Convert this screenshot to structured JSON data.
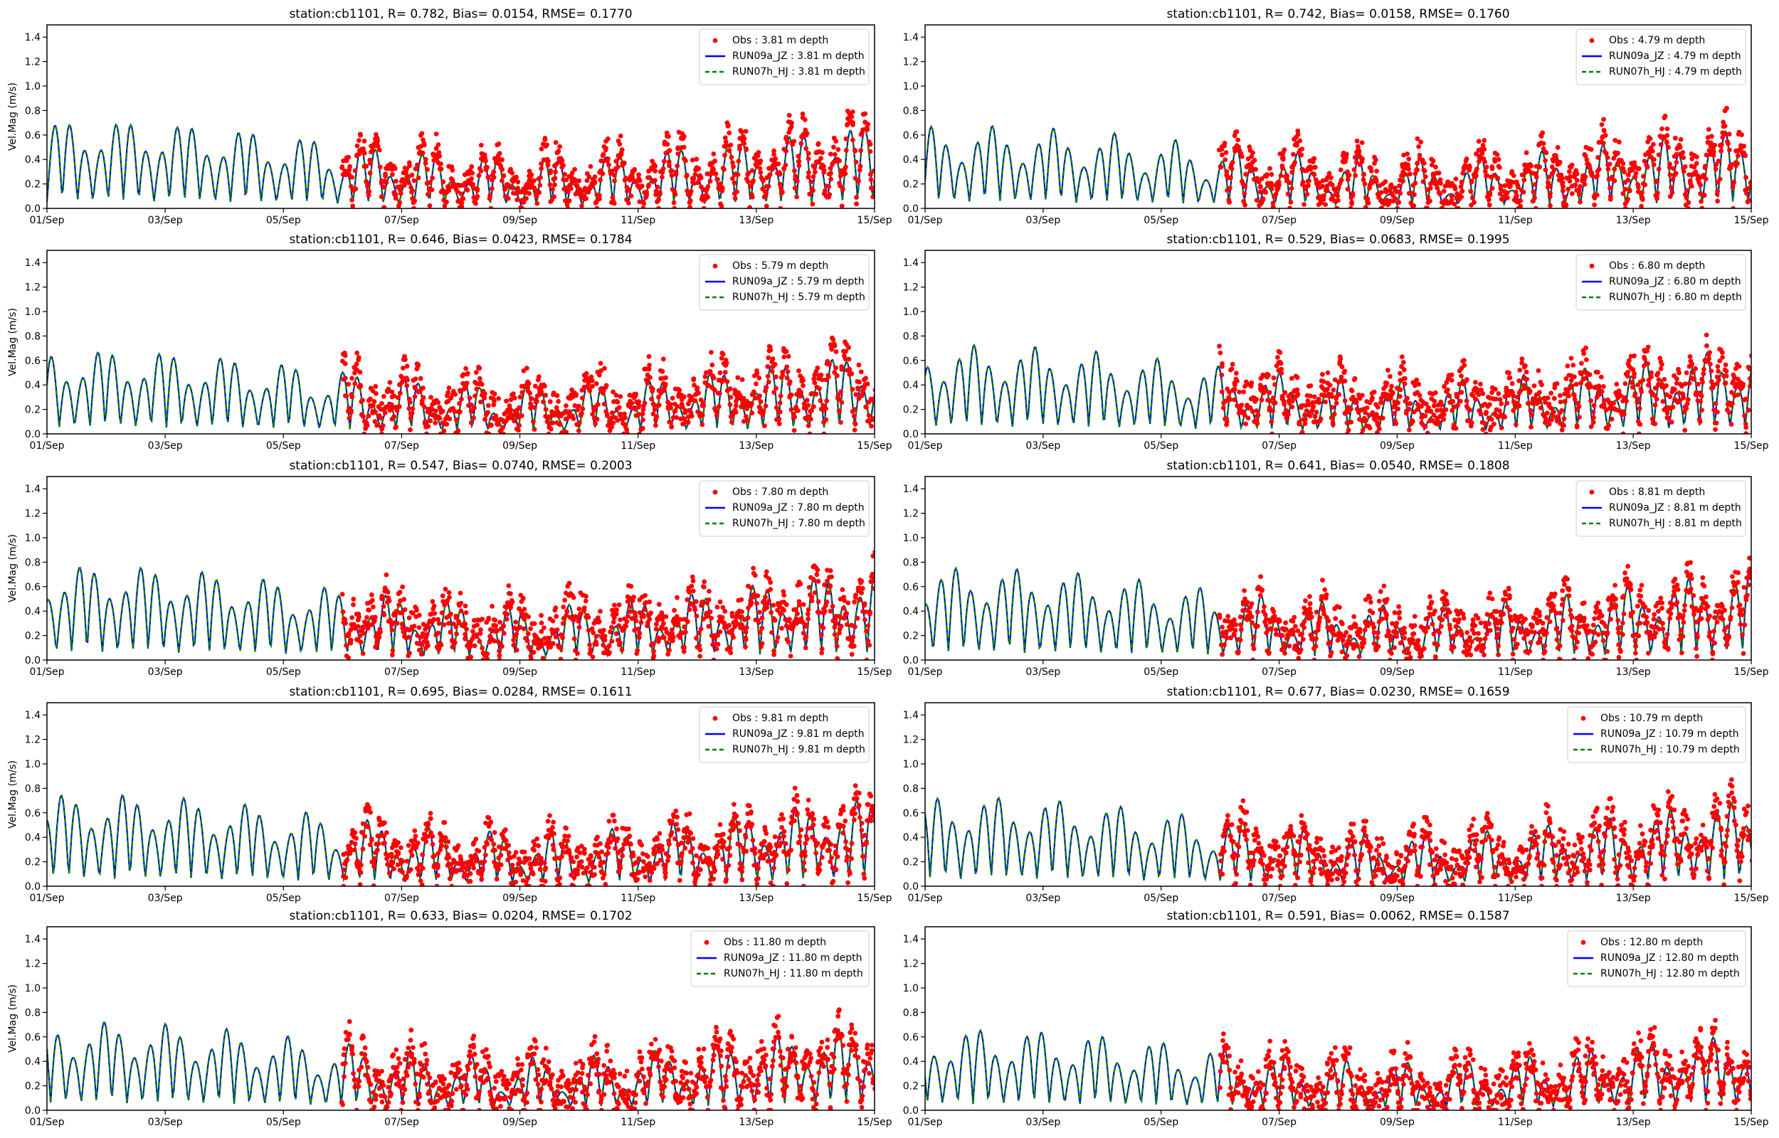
{
  "figure": {
    "ylabel": "Vel.Mag (m/s)",
    "obs_color": "#ff0000",
    "run1_color": "#0000ff",
    "run2_color": "#008000"
  },
  "chart_data": [
    {
      "type": "line",
      "title": "station:cb1101, R= 0.782, Bias= 0.0154, RMSE= 0.1770",
      "depth": "3.81",
      "legend": [
        "Obs : 3.81 m depth",
        "RUN09a_JZ : 3.81 m depth",
        "RUN07h_HJ : 3.81 m depth"
      ],
      "stats": {
        "R": 0.782,
        "Bias": 0.0154,
        "RMSE": 0.177
      },
      "amp": 0.55,
      "obs_scale": 1.15,
      "obs_noise": 0.1
    },
    {
      "type": "line",
      "title": "station:cb1101, R= 0.742, Bias= 0.0158, RMSE= 0.1760",
      "depth": "4.79",
      "legend": [
        "Obs : 4.79 m depth",
        "RUN09a_JZ : 4.79 m depth",
        "RUN07h_HJ : 4.79 m depth"
      ],
      "stats": {
        "R": 0.742,
        "Bias": 0.0158,
        "RMSE": 0.176
      },
      "amp": 0.5,
      "obs_scale": 1.15,
      "obs_noise": 0.12
    },
    {
      "type": "line",
      "title": "station:cb1101, R= 0.646, Bias= 0.0423, RMSE= 0.1784",
      "depth": "5.79",
      "legend": [
        "Obs : 5.79 m depth",
        "RUN09a_JZ : 5.79 m depth",
        "RUN07h_HJ : 5.79 m depth"
      ],
      "stats": {
        "R": 0.646,
        "Bias": 0.0423,
        "RMSE": 0.1784
      },
      "amp": 0.52,
      "obs_scale": 1.05,
      "obs_noise": 0.14
    },
    {
      "type": "line",
      "title": "station:cb1101, R= 0.529, Bias= 0.0683, RMSE= 0.1995",
      "depth": "6.80",
      "legend": [
        "Obs : 6.80 m depth",
        "RUN09a_JZ : 6.80 m depth",
        "RUN07h_HJ : 6.80 m depth"
      ],
      "stats": {
        "R": 0.529,
        "Bias": 0.0683,
        "RMSE": 0.1995
      },
      "amp": 0.55,
      "obs_scale": 0.95,
      "obs_noise": 0.16
    },
    {
      "type": "line",
      "title": "station:cb1101, R= 0.547, Bias= 0.0740, RMSE= 0.2003",
      "depth": "7.80",
      "legend": [
        "Obs : 7.80 m depth",
        "RUN09a_JZ : 7.80 m depth",
        "RUN07h_HJ : 7.80 m depth"
      ],
      "stats": {
        "R": 0.547,
        "Bias": 0.074,
        "RMSE": 0.2003
      },
      "amp": 0.6,
      "obs_scale": 0.9,
      "obs_noise": 0.16
    },
    {
      "type": "line",
      "title": "station:cb1101, R= 0.641, Bias= 0.0540, RMSE= 0.1808",
      "depth": "8.81",
      "legend": [
        "Obs : 8.81 m depth",
        "RUN09a_JZ : 8.81 m depth",
        "RUN07h_HJ : 8.81 m depth"
      ],
      "stats": {
        "R": 0.641,
        "Bias": 0.054,
        "RMSE": 0.1808
      },
      "amp": 0.58,
      "obs_scale": 0.95,
      "obs_noise": 0.15
    },
    {
      "type": "line",
      "title": "station:cb1101, R= 0.695, Bias= 0.0284, RMSE= 0.1611",
      "depth": "9.81",
      "legend": [
        "Obs : 9.81 m depth",
        "RUN09a_JZ : 9.81 m depth",
        "RUN07h_HJ : 9.81 m depth"
      ],
      "stats": {
        "R": 0.695,
        "Bias": 0.0284,
        "RMSE": 0.1611
      },
      "amp": 0.58,
      "obs_scale": 1.0,
      "obs_noise": 0.13
    },
    {
      "type": "line",
      "title": "station:cb1101, R= 0.677, Bias= 0.0230, RMSE= 0.1659",
      "depth": "10.79",
      "legend": [
        "Obs : 10.79 m depth",
        "RUN09a_JZ : 10.79 m depth",
        "RUN07h_HJ : 10.79 m depth"
      ],
      "stats": {
        "R": 0.677,
        "Bias": 0.023,
        "RMSE": 0.1659
      },
      "amp": 0.56,
      "obs_scale": 1.05,
      "obs_noise": 0.14
    },
    {
      "type": "line",
      "title": "station:cb1101, R= 0.633, Bias= 0.0204, RMSE= 0.1702",
      "depth": "11.80",
      "legend": [
        "Obs : 11.80 m depth",
        "RUN09a_JZ : 11.80 m depth",
        "RUN07h_HJ : 11.80 m depth"
      ],
      "stats": {
        "R": 0.633,
        "Bias": 0.0204,
        "RMSE": 0.1702
      },
      "amp": 0.55,
      "obs_scale": 1.05,
      "obs_noise": 0.15
    },
    {
      "type": "line",
      "title": "station:cb1101, R= 0.591, Bias= 0.0062, RMSE= 0.1587",
      "depth": "12.80",
      "legend": [
        "Obs : 12.80 m depth",
        "RUN09a_JZ : 12.80 m depth",
        "RUN07h_HJ : 12.80 m depth"
      ],
      "stats": {
        "R": 0.591,
        "Bias": 0.0062,
        "RMSE": 0.1587
      },
      "amp": 0.5,
      "obs_scale": 1.05,
      "obs_noise": 0.15
    }
  ],
  "axes": {
    "xlim_days": [
      1,
      15
    ],
    "obs_start_day": 6,
    "ylim": [
      0,
      1.5
    ],
    "yticks": [
      0.0,
      0.2,
      0.4,
      0.6,
      0.8,
      1.0,
      1.2,
      1.4
    ],
    "ytick_labels": [
      "0.0",
      "0.2",
      "0.4",
      "0.6",
      "0.8",
      "1.0",
      "1.2",
      "1.4"
    ],
    "xticks_days": [
      1,
      3,
      5,
      7,
      9,
      11,
      13,
      15
    ],
    "xtick_labels": [
      "01/Sep",
      "03/Sep",
      "05/Sep",
      "07/Sep",
      "09/Sep",
      "11/Sep",
      "13/Sep",
      "15/Sep"
    ]
  }
}
